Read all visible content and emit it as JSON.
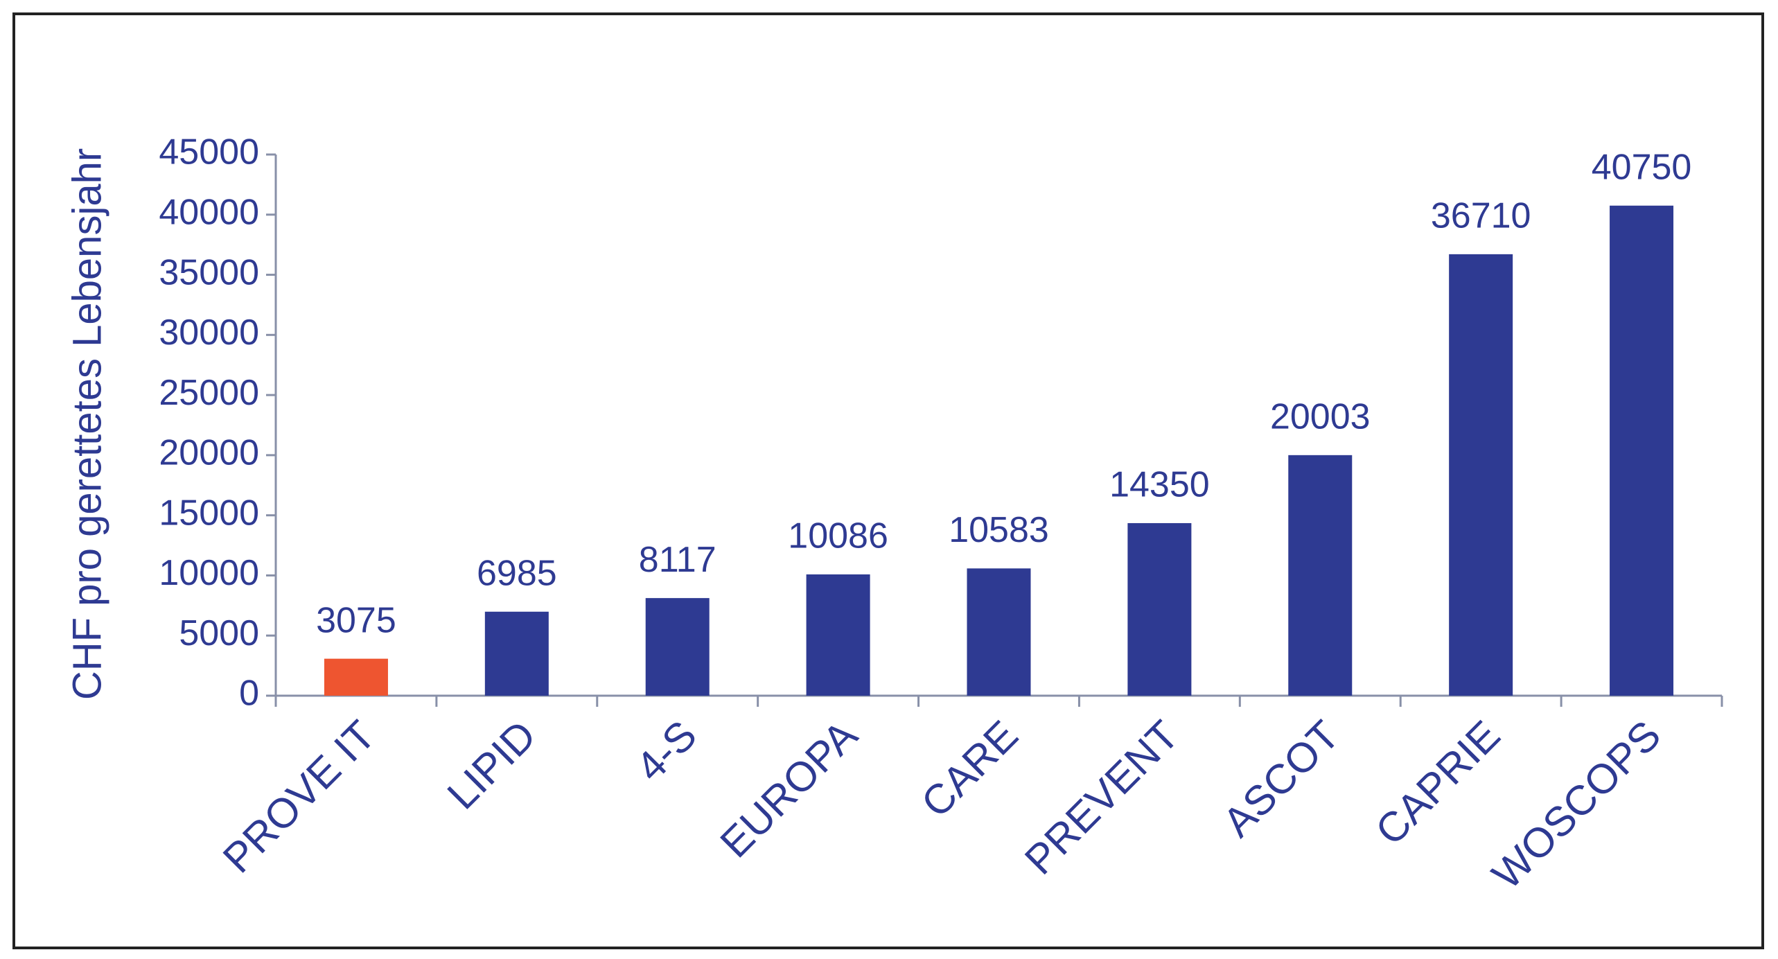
{
  "chart_data": {
    "type": "bar",
    "y_label": "CHF pro gerettetes Lebensjahr",
    "categories": [
      "PROVE IT",
      "LIPID",
      "4-S",
      "EUROPA",
      "CARE",
      "PREVENT",
      "ASCOT",
      "CAPRIE",
      "WOSCOPS"
    ],
    "values": [
      3075,
      6985,
      8117,
      10086,
      10583,
      14350,
      20003,
      36710,
      40750
    ],
    "colors": [
      "#ee5530",
      "#2e3a92",
      "#2e3a92",
      "#2e3a92",
      "#2e3a92",
      "#2e3a92",
      "#2e3a92",
      "#2e3a92",
      "#2e3a92"
    ],
    "ylim": [
      0,
      45000
    ],
    "yticks": [
      0,
      5000,
      10000,
      15000,
      20000,
      25000,
      30000,
      35000,
      40000,
      45000
    ],
    "grid": false
  }
}
